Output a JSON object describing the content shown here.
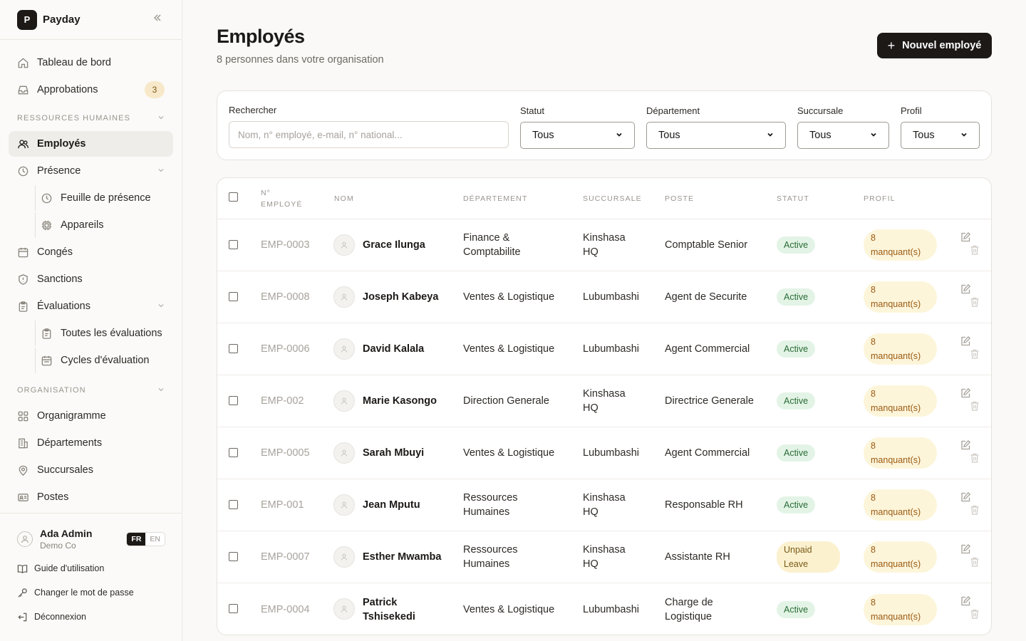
{
  "brand": {
    "logo_letter": "P",
    "name": "Payday",
    "collapse_icon": "double-chevron-left-icon"
  },
  "nav": {
    "dashboard": "Tableau de bord",
    "approvals": "Approbations",
    "approvals_count": "3",
    "section_hr": "RESSOURCES HUMAINES",
    "employees": "Employés",
    "attendance": "Présence",
    "timesheet": "Feuille de présence",
    "devices": "Appareils",
    "leaves": "Congés",
    "sanctions": "Sanctions",
    "evaluations": "Évaluations",
    "all_evaluations": "Toutes les évaluations",
    "evaluation_cycles": "Cycles d'évaluation",
    "section_org": "ORGANISATION",
    "orgchart": "Organigramme",
    "departments": "Départements",
    "branches": "Succursales",
    "positions": "Postes"
  },
  "footer": {
    "user_name": "Ada Admin",
    "user_org": "Demo Co",
    "lang_active": "FR",
    "lang_other": "EN",
    "guide": "Guide d'utilisation",
    "change_password": "Changer le mot de passe",
    "logout": "Déconnexion"
  },
  "header": {
    "title": "Employés",
    "subtitle": "8 personnes dans votre organisation",
    "new_button": "Nouvel employé"
  },
  "filters": {
    "search_label": "Rechercher",
    "search_placeholder": "Nom, n° employé, e-mail, n° national...",
    "status_label": "Statut",
    "status_value": "Tous",
    "department_label": "Département",
    "department_value": "Tous",
    "branch_label": "Succursale",
    "branch_value": "Tous",
    "profile_label": "Profil",
    "profile_value": "Tous"
  },
  "table": {
    "columns": {
      "emp_no_1": "N°",
      "emp_no_2": "EMPLOYÉ",
      "name": "NOM",
      "department": "DÉPARTEMENT",
      "branch": "SUCCURSALE",
      "position": "POSTE",
      "status": "STATUT",
      "profile": "PROFIL"
    },
    "rows": [
      {
        "id": "EMP-0003",
        "name1": "Grace Ilunga",
        "name2": "",
        "dept1": "Finance &",
        "dept2": "Comptabilite",
        "branch1": "Kinshasa",
        "branch2": "HQ",
        "pos1": "Comptable Senior",
        "pos2": "",
        "status1": "Active",
        "status2": "",
        "profile1": "8",
        "profile2": "manquant(s)"
      },
      {
        "id": "EMP-0008",
        "name1": "Joseph Kabeya",
        "name2": "",
        "dept1": "Ventes & Logistique",
        "dept2": "",
        "branch1": "Lubumbashi",
        "branch2": "",
        "pos1": "Agent de Securite",
        "pos2": "",
        "status1": "Active",
        "status2": "",
        "profile1": "8",
        "profile2": "manquant(s)"
      },
      {
        "id": "EMP-0006",
        "name1": "David Kalala",
        "name2": "",
        "dept1": "Ventes & Logistique",
        "dept2": "",
        "branch1": "Lubumbashi",
        "branch2": "",
        "pos1": "Agent Commercial",
        "pos2": "",
        "status1": "Active",
        "status2": "",
        "profile1": "8",
        "profile2": "manquant(s)"
      },
      {
        "id": "EMP-002",
        "name1": "Marie Kasongo",
        "name2": "",
        "dept1": "Direction Generale",
        "dept2": "",
        "branch1": "Kinshasa",
        "branch2": "HQ",
        "pos1": "Directrice Generale",
        "pos2": "",
        "status1": "Active",
        "status2": "",
        "profile1": "8",
        "profile2": "manquant(s)"
      },
      {
        "id": "EMP-0005",
        "name1": "Sarah Mbuyi",
        "name2": "",
        "dept1": "Ventes & Logistique",
        "dept2": "",
        "branch1": "Lubumbashi",
        "branch2": "",
        "pos1": "Agent Commercial",
        "pos2": "",
        "status1": "Active",
        "status2": "",
        "profile1": "8",
        "profile2": "manquant(s)"
      },
      {
        "id": "EMP-001",
        "name1": "Jean Mputu",
        "name2": "",
        "dept1": "Ressources",
        "dept2": "Humaines",
        "branch1": "Kinshasa",
        "branch2": "HQ",
        "pos1": "Responsable RH",
        "pos2": "",
        "status1": "Active",
        "status2": "",
        "profile1": "8",
        "profile2": "manquant(s)"
      },
      {
        "id": "EMP-0007",
        "name1": "Esther Mwamba",
        "name2": "",
        "dept1": "Ressources",
        "dept2": "Humaines",
        "branch1": "Kinshasa",
        "branch2": "HQ",
        "pos1": "Assistante RH",
        "pos2": "",
        "status1": "Unpaid",
        "status2": "Leave",
        "profile1": "8",
        "profile2": "manquant(s)"
      },
      {
        "id": "EMP-0004",
        "name1": "Patrick",
        "name2": "Tshisekedi",
        "dept1": "Ventes & Logistique",
        "dept2": "",
        "branch1": "Lubumbashi",
        "branch2": "",
        "pos1": "Charge de",
        "pos2": "Logistique",
        "status1": "Active",
        "status2": "",
        "profile1": "8",
        "profile2": "manquant(s)"
      }
    ]
  },
  "colors": {
    "primary": "#1c1917",
    "active_status_bg": "#e3f4e6",
    "leave_status_bg": "#fbf1cf",
    "profile_badge_bg": "#fdf5da",
    "approvals_badge_bg": "#f7e8c9"
  }
}
